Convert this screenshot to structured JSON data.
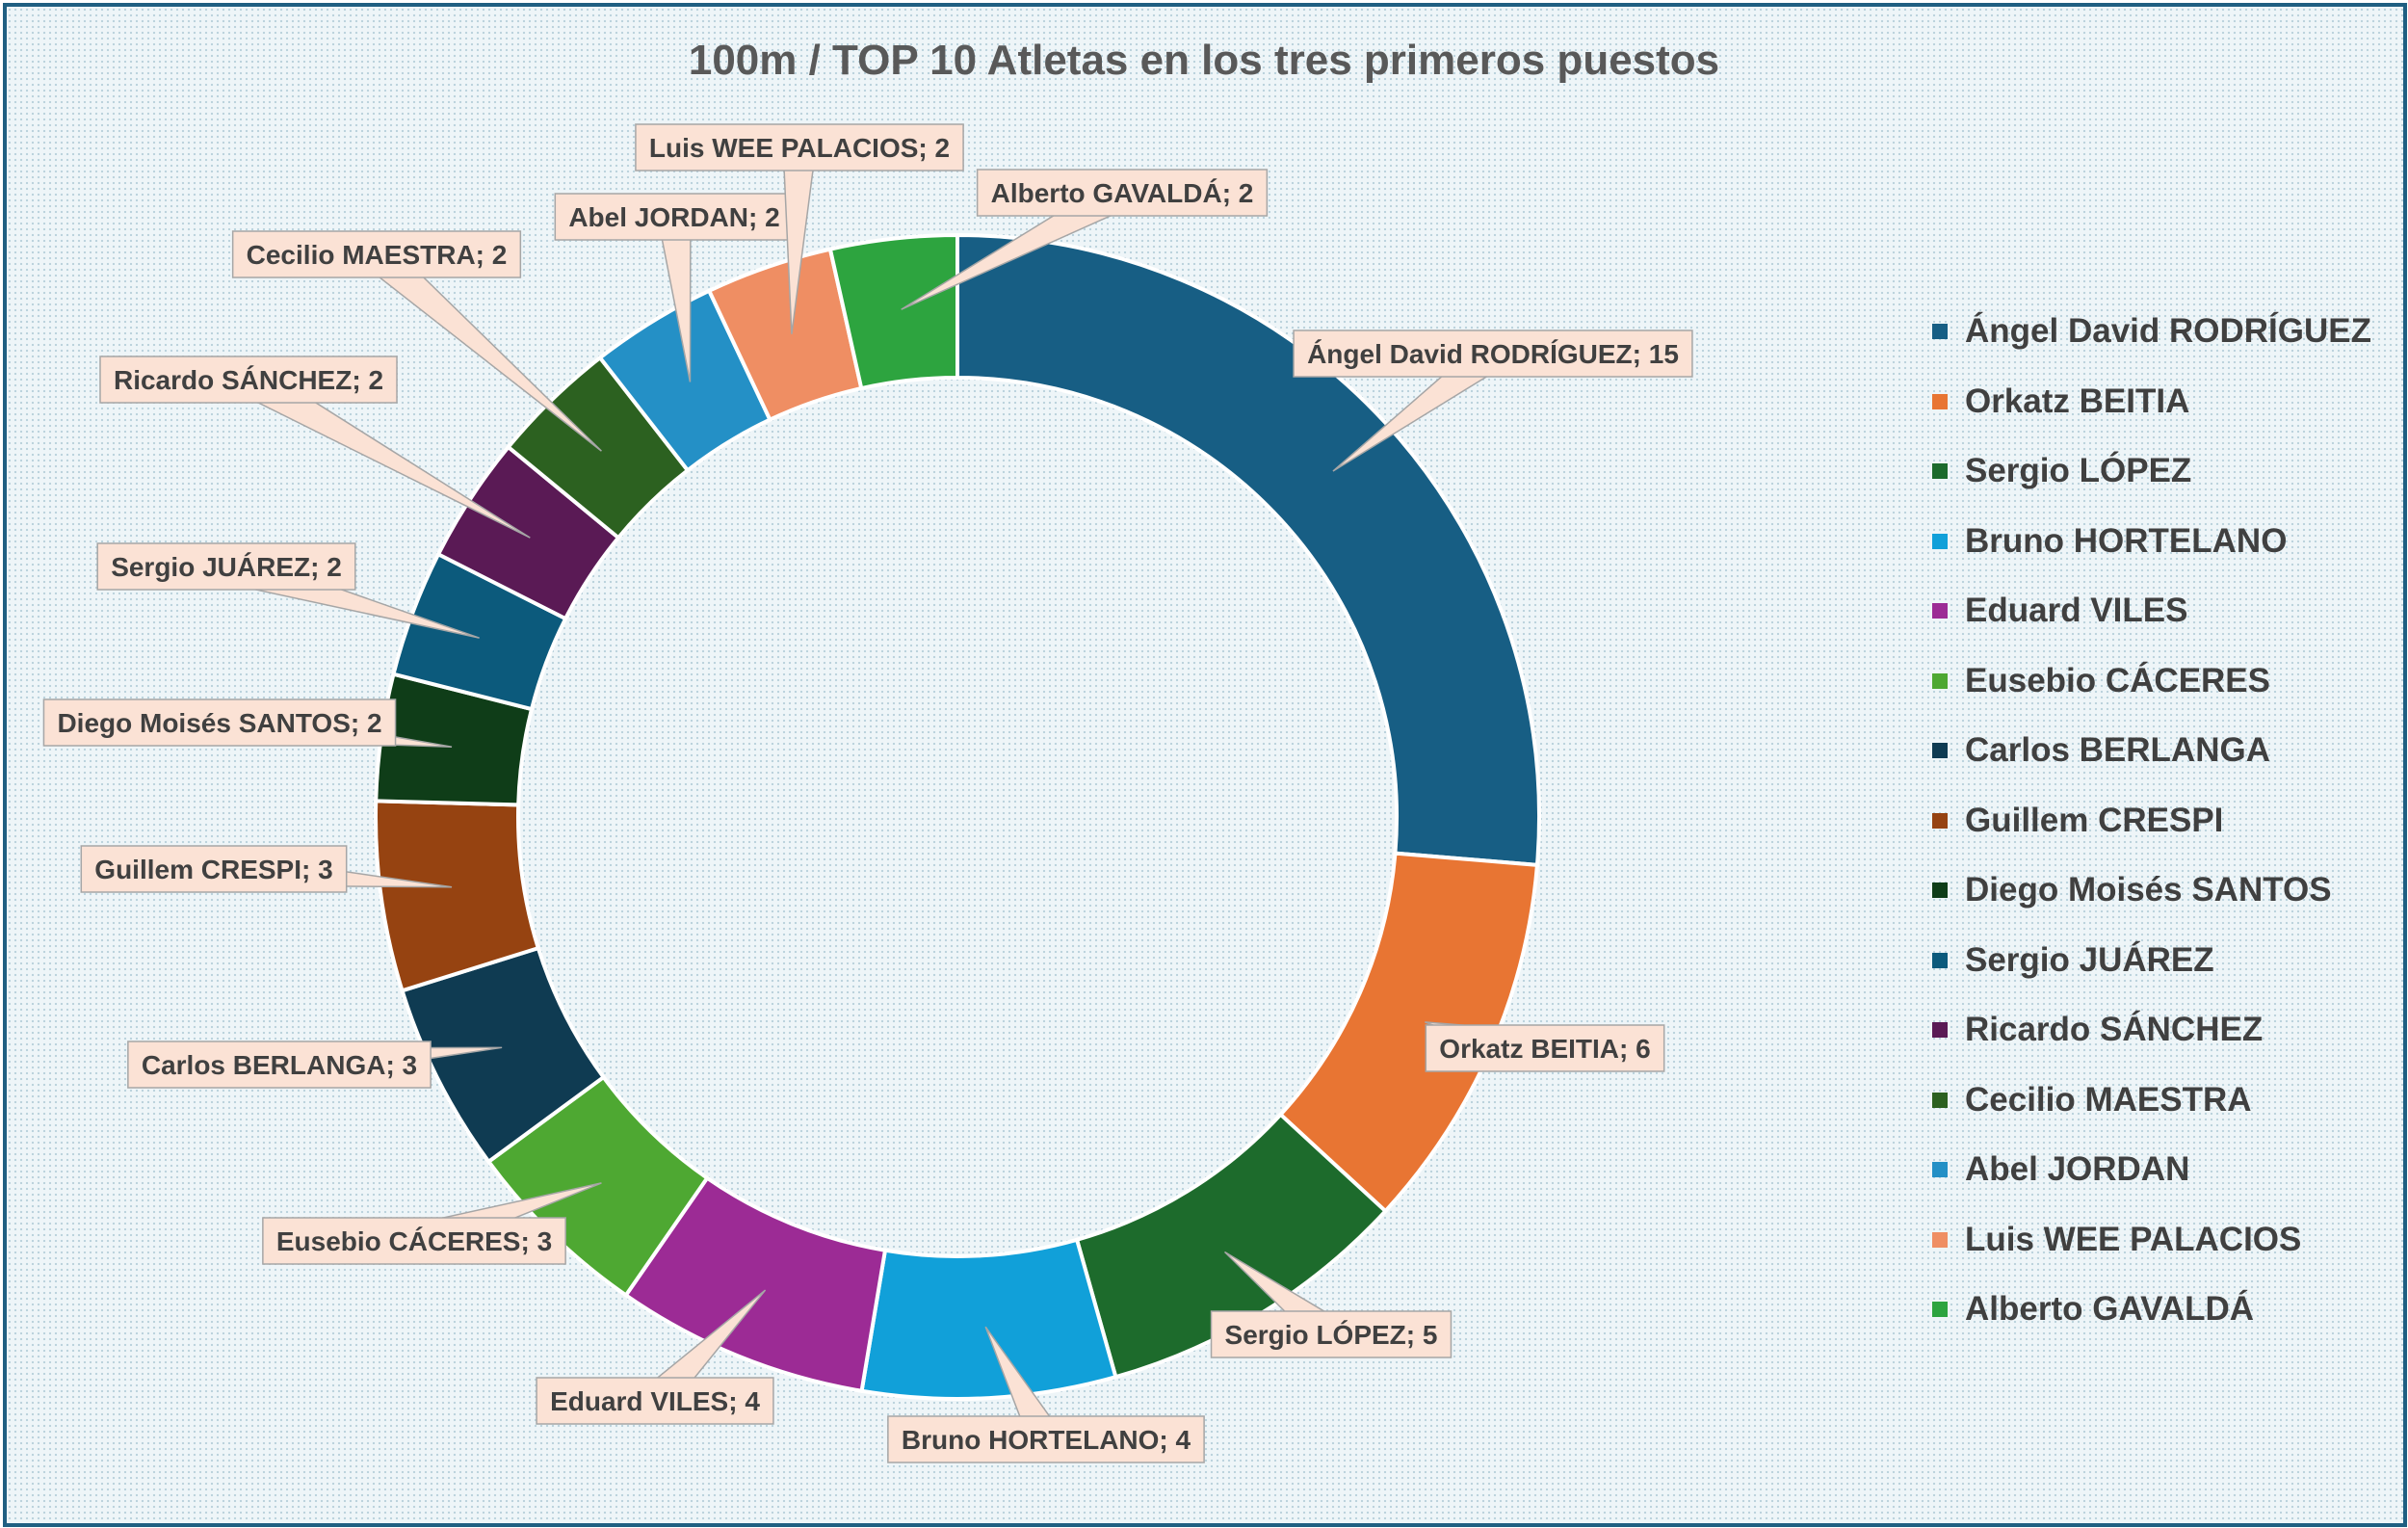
{
  "chart_data": {
    "type": "pie",
    "title": "100m / TOP 10 Atletas en los tres primeros puestos",
    "categories": [
      "Ángel David RODRÍGUEZ",
      "Orkatz BEITIA",
      "Sergio LÓPEZ",
      "Bruno HORTELANO",
      "Eduard VILES",
      "Eusebio CÁCERES",
      "Carlos BERLANGA",
      "Guillem CRESPI",
      "Diego Moisés SANTOS",
      "Sergio JUÁREZ",
      "Ricardo SÁNCHEZ",
      "Cecilio MAESTRA",
      "Abel JORDAN",
      "Luis WEE PALACIOS",
      "Alberto GAVALDÁ"
    ],
    "values": [
      15,
      6,
      5,
      4,
      4,
      3,
      3,
      3,
      2,
      2,
      2,
      2,
      2,
      2,
      2
    ],
    "data_labels": [
      "Ángel David RODRÍGUEZ; 15",
      "Orkatz BEITIA; 6",
      "Sergio LÓPEZ; 5",
      "Bruno HORTELANO; 4",
      "Eduard VILES; 4",
      "Eusebio CÁCERES; 3",
      "Carlos BERLANGA; 3",
      "Guillem CRESPI; 3",
      "Diego Moisés SANTOS; 2",
      "Sergio JUÁREZ; 2",
      "Ricardo SÁNCHEZ; 2",
      "Cecilio MAESTRA; 2",
      "Abel JORDAN; 2",
      "Luis WEE PALACIOS; 2",
      "Alberto GAVALDÁ; 2"
    ],
    "colors": [
      "#175e84",
      "#e87533",
      "#1d6b2c",
      "#11a0d9",
      "#9c2b95",
      "#4ea832",
      "#0f3b52",
      "#964311",
      "#0f3d18",
      "#0c5a7c",
      "#5a1a55",
      "#2c6120",
      "#2490c6",
      "#ef8e63",
      "#2da43f"
    ],
    "legend_position": "right",
    "donut": true
  }
}
